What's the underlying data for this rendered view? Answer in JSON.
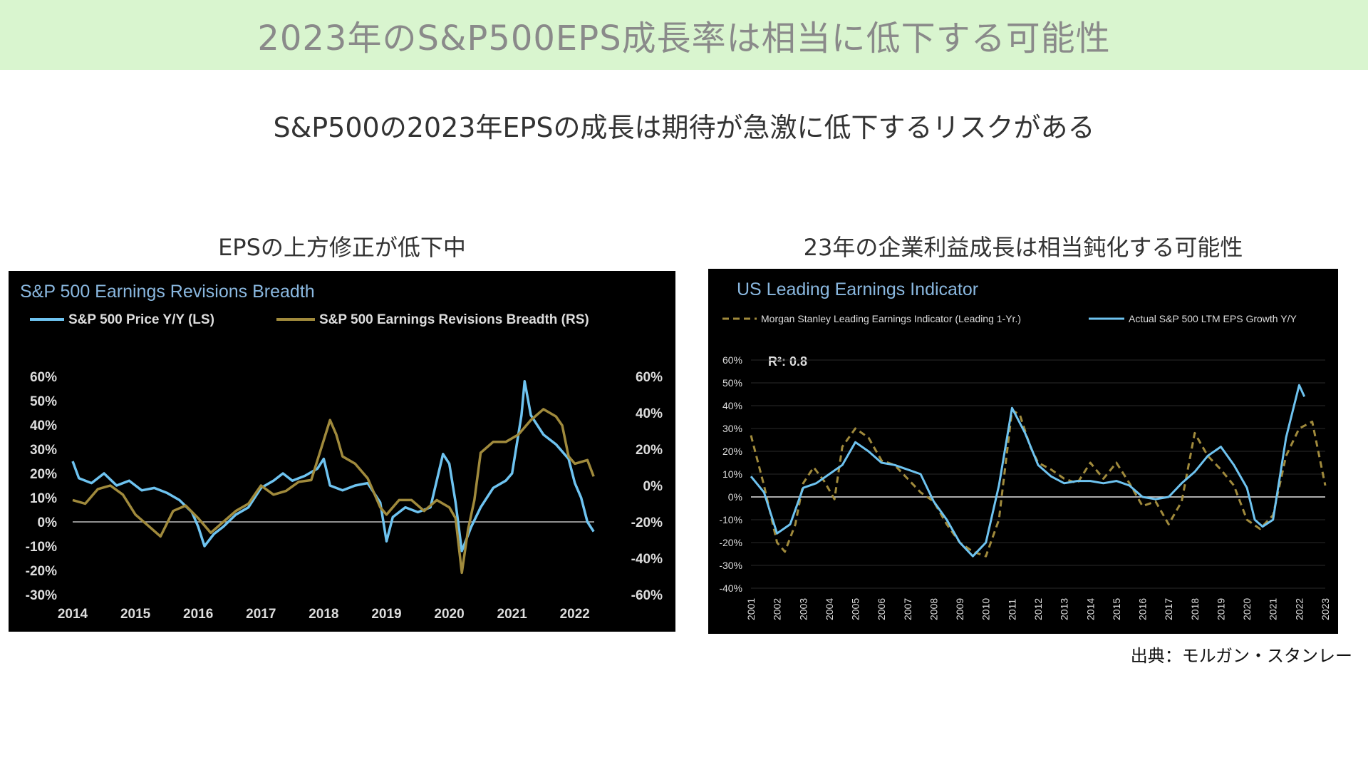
{
  "header": {
    "title": "2023年のS&P500EPS成長率は相当に低下する可能性"
  },
  "subtitle": "S&P500の2023年EPSの成長は期待が急激に低下するリスクがある",
  "left_panel": {
    "title": "EPSの上方修正が低下中"
  },
  "right_panel": {
    "title": "23年の企業利益成長は相当鈍化する可能性"
  },
  "source": "出典：モルガン・スタンレー",
  "colors": {
    "banner_bg": "#d9f5cf",
    "blue": "#6ec3f0",
    "gold": "#a08a3c",
    "chart_bg": "#000000"
  },
  "chart_data": [
    {
      "type": "line",
      "title": "S&P 500 Earnings Revisions Breadth",
      "xlabel": "",
      "ylabel": "",
      "x_ticks": [
        "2014",
        "2015",
        "2016",
        "2017",
        "2018",
        "2019",
        "2020",
        "2021",
        "2022"
      ],
      "xlim": [
        2014,
        2022.4
      ],
      "y_left": {
        "ticks": [
          "60%",
          "50%",
          "40%",
          "30%",
          "20%",
          "10%",
          "0%",
          "-10%",
          "-20%",
          "-30%"
        ],
        "lim": [
          -30,
          60
        ]
      },
      "y_right": {
        "ticks": [
          "60%",
          "40%",
          "20%",
          "0%",
          "-20%",
          "-40%",
          "-60%"
        ],
        "lim": [
          -60,
          60
        ]
      },
      "legend_position": "top",
      "grid": false,
      "series": [
        {
          "name": "S&P 500 Price Y/Y (LS)",
          "axis": "left",
          "color": "#6ec3f0",
          "points": [
            [
              2014.0,
              25
            ],
            [
              2014.1,
              18
            ],
            [
              2014.3,
              16
            ],
            [
              2014.5,
              20
            ],
            [
              2014.7,
              15
            ],
            [
              2014.9,
              17
            ],
            [
              2015.1,
              13
            ],
            [
              2015.3,
              14
            ],
            [
              2015.5,
              12
            ],
            [
              2015.7,
              9
            ],
            [
              2015.9,
              4
            ],
            [
              2016.0,
              -2
            ],
            [
              2016.1,
              -10
            ],
            [
              2016.25,
              -5
            ],
            [
              2016.4,
              -2
            ],
            [
              2016.6,
              3
            ],
            [
              2016.8,
              6
            ],
            [
              2017.0,
              14
            ],
            [
              2017.2,
              17
            ],
            [
              2017.35,
              20
            ],
            [
              2017.5,
              17
            ],
            [
              2017.7,
              19
            ],
            [
              2017.9,
              22
            ],
            [
              2018.0,
              26
            ],
            [
              2018.1,
              15
            ],
            [
              2018.3,
              13
            ],
            [
              2018.5,
              15
            ],
            [
              2018.7,
              16
            ],
            [
              2018.9,
              8
            ],
            [
              2019.0,
              -8
            ],
            [
              2019.1,
              2
            ],
            [
              2019.3,
              6
            ],
            [
              2019.5,
              4
            ],
            [
              2019.7,
              6
            ],
            [
              2019.9,
              28
            ],
            [
              2020.0,
              24
            ],
            [
              2020.1,
              8
            ],
            [
              2020.2,
              -12
            ],
            [
              2020.35,
              -2
            ],
            [
              2020.5,
              6
            ],
            [
              2020.7,
              14
            ],
            [
              2020.9,
              17
            ],
            [
              2021.0,
              20
            ],
            [
              2021.15,
              44
            ],
            [
              2021.2,
              58
            ],
            [
              2021.3,
              44
            ],
            [
              2021.5,
              36
            ],
            [
              2021.7,
              32
            ],
            [
              2021.9,
              26
            ],
            [
              2022.0,
              16
            ],
            [
              2022.1,
              10
            ],
            [
              2022.2,
              0
            ],
            [
              2022.3,
              -4
            ]
          ]
        },
        {
          "name": "S&P 500 Earnings Revisions Breadth (RS)",
          "axis": "right",
          "color": "#a08a3c",
          "points": [
            [
              2014.0,
              -8
            ],
            [
              2014.2,
              -10
            ],
            [
              2014.4,
              -2
            ],
            [
              2014.6,
              0
            ],
            [
              2014.8,
              -5
            ],
            [
              2015.0,
              -16
            ],
            [
              2015.2,
              -22
            ],
            [
              2015.4,
              -28
            ],
            [
              2015.6,
              -14
            ],
            [
              2015.8,
              -11
            ],
            [
              2016.0,
              -18
            ],
            [
              2016.2,
              -26
            ],
            [
              2016.4,
              -20
            ],
            [
              2016.6,
              -14
            ],
            [
              2016.8,
              -10
            ],
            [
              2017.0,
              0
            ],
            [
              2017.2,
              -5
            ],
            [
              2017.4,
              -3
            ],
            [
              2017.6,
              2
            ],
            [
              2017.8,
              3
            ],
            [
              2018.0,
              25
            ],
            [
              2018.1,
              36
            ],
            [
              2018.2,
              28
            ],
            [
              2018.3,
              16
            ],
            [
              2018.5,
              12
            ],
            [
              2018.7,
              4
            ],
            [
              2018.9,
              -12
            ],
            [
              2019.0,
              -16
            ],
            [
              2019.2,
              -8
            ],
            [
              2019.4,
              -8
            ],
            [
              2019.6,
              -14
            ],
            [
              2019.8,
              -8
            ],
            [
              2020.0,
              -12
            ],
            [
              2020.1,
              -18
            ],
            [
              2020.2,
              -48
            ],
            [
              2020.3,
              -24
            ],
            [
              2020.4,
              -8
            ],
            [
              2020.5,
              18
            ],
            [
              2020.7,
              24
            ],
            [
              2020.9,
              24
            ],
            [
              2021.1,
              28
            ],
            [
              2021.3,
              36
            ],
            [
              2021.5,
              42
            ],
            [
              2021.7,
              38
            ],
            [
              2021.8,
              33
            ],
            [
              2021.9,
              16
            ],
            [
              2022.0,
              12
            ],
            [
              2022.2,
              14
            ],
            [
              2022.3,
              5
            ]
          ]
        }
      ]
    },
    {
      "type": "line",
      "title": "US Leading Earnings Indicator",
      "xlabel": "",
      "ylabel": "",
      "x_ticks": [
        "2001",
        "2002",
        "2003",
        "2004",
        "2005",
        "2006",
        "2007",
        "2008",
        "2009",
        "2010",
        "2011",
        "2012",
        "2013",
        "2014",
        "2015",
        "2016",
        "2017",
        "2018",
        "2019",
        "2020",
        "2021",
        "2022",
        "2023"
      ],
      "xlim": [
        2001,
        2023
      ],
      "y_ticks": [
        "60%",
        "50%",
        "40%",
        "30%",
        "20%",
        "10%",
        "0%",
        "-10%",
        "-20%",
        "-30%",
        "-40%"
      ],
      "ylim": [
        -40,
        60
      ],
      "annotation": "R²: 0.8",
      "legend_position": "top",
      "grid": true,
      "series": [
        {
          "name": "Morgan Stanley Leading Earnings Indicator (Leading 1-Yr.)",
          "style": "dashed",
          "color": "#a08a3c",
          "points": [
            [
              2001.0,
              27
            ],
            [
              2001.5,
              5
            ],
            [
              2002.0,
              -20
            ],
            [
              2002.3,
              -24
            ],
            [
              2002.7,
              -12
            ],
            [
              2003.0,
              6
            ],
            [
              2003.4,
              13
            ],
            [
              2003.8,
              7
            ],
            [
              2004.2,
              -1
            ],
            [
              2004.5,
              22
            ],
            [
              2005.0,
              30
            ],
            [
              2005.5,
              26
            ],
            [
              2006.0,
              16
            ],
            [
              2006.5,
              14
            ],
            [
              2007.0,
              8
            ],
            [
              2007.5,
              2
            ],
            [
              2008.0,
              -2
            ],
            [
              2008.5,
              -12
            ],
            [
              2009.0,
              -20
            ],
            [
              2009.5,
              -24
            ],
            [
              2010.0,
              -26
            ],
            [
              2010.5,
              -10
            ],
            [
              2011.0,
              38
            ],
            [
              2011.3,
              36
            ],
            [
              2011.7,
              22
            ],
            [
              2012.0,
              15
            ],
            [
              2012.5,
              12
            ],
            [
              2013.0,
              8
            ],
            [
              2013.5,
              6
            ],
            [
              2014.0,
              15
            ],
            [
              2014.5,
              8
            ],
            [
              2015.0,
              15
            ],
            [
              2015.5,
              6
            ],
            [
              2016.0,
              -4
            ],
            [
              2016.5,
              -2
            ],
            [
              2017.0,
              -12
            ],
            [
              2017.5,
              -2
            ],
            [
              2018.0,
              28
            ],
            [
              2018.5,
              18
            ],
            [
              2019.0,
              12
            ],
            [
              2019.5,
              5
            ],
            [
              2020.0,
              -10
            ],
            [
              2020.5,
              -14
            ],
            [
              2021.0,
              -8
            ],
            [
              2021.5,
              18
            ],
            [
              2022.0,
              30
            ],
            [
              2022.5,
              33
            ],
            [
              2023.0,
              5
            ]
          ]
        },
        {
          "name": "Actual S&P 500 LTM EPS Growth Y/Y",
          "style": "solid",
          "color": "#6ec3f0",
          "points": [
            [
              2001.0,
              9
            ],
            [
              2001.5,
              2
            ],
            [
              2002.0,
              -16
            ],
            [
              2002.5,
              -12
            ],
            [
              2003.0,
              4
            ],
            [
              2003.5,
              6
            ],
            [
              2004.0,
              10
            ],
            [
              2004.5,
              14
            ],
            [
              2005.0,
              24
            ],
            [
              2005.5,
              20
            ],
            [
              2006.0,
              15
            ],
            [
              2006.5,
              14
            ],
            [
              2007.0,
              12
            ],
            [
              2007.5,
              10
            ],
            [
              2008.0,
              -2
            ],
            [
              2008.5,
              -10
            ],
            [
              2009.0,
              -20
            ],
            [
              2009.5,
              -26
            ],
            [
              2010.0,
              -20
            ],
            [
              2010.5,
              5
            ],
            [
              2011.0,
              39
            ],
            [
              2011.5,
              28
            ],
            [
              2012.0,
              14
            ],
            [
              2012.5,
              9
            ],
            [
              2013.0,
              6
            ],
            [
              2013.5,
              7
            ],
            [
              2014.0,
              7
            ],
            [
              2014.5,
              6
            ],
            [
              2015.0,
              7
            ],
            [
              2015.5,
              5
            ],
            [
              2016.0,
              0
            ],
            [
              2016.5,
              -1
            ],
            [
              2017.0,
              0
            ],
            [
              2017.5,
              6
            ],
            [
              2018.0,
              11
            ],
            [
              2018.5,
              18
            ],
            [
              2019.0,
              22
            ],
            [
              2019.5,
              14
            ],
            [
              2020.0,
              4
            ],
            [
              2020.3,
              -10
            ],
            [
              2020.6,
              -13
            ],
            [
              2021.0,
              -10
            ],
            [
              2021.5,
              26
            ],
            [
              2022.0,
              49
            ],
            [
              2022.2,
              44
            ]
          ]
        }
      ]
    }
  ]
}
